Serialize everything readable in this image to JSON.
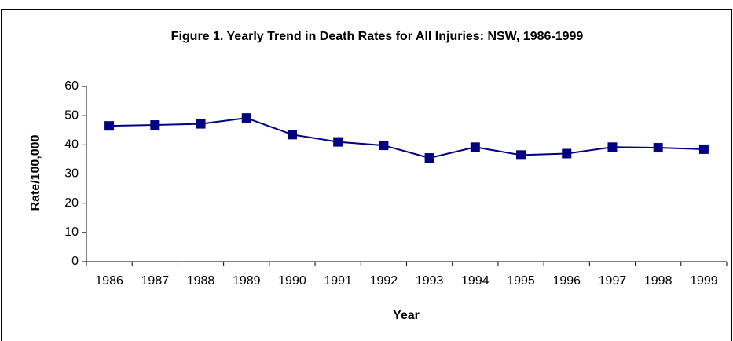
{
  "chart_data": {
    "type": "line",
    "title": "Figure 1.  Yearly Trend in Death Rates for All Injuries: NSW, 1986-1999",
    "x_label": "Year",
    "y_label": "Rate/100,000",
    "categories": [
      "1986",
      "1987",
      "1988",
      "1989",
      "1990",
      "1991",
      "1992",
      "1993",
      "1994",
      "1995",
      "1996",
      "1997",
      "1998",
      "1999"
    ],
    "values": [
      46.5,
      46.8,
      47.2,
      49.2,
      43.5,
      41,
      39.8,
      35.5,
      39.2,
      36.5,
      37,
      39.2,
      39,
      38.5
    ],
    "color": "#000080",
    "ylim": [
      0,
      60
    ],
    "yticks": [
      0,
      10,
      20,
      30,
      40,
      50,
      60
    ],
    "grid": false
  }
}
